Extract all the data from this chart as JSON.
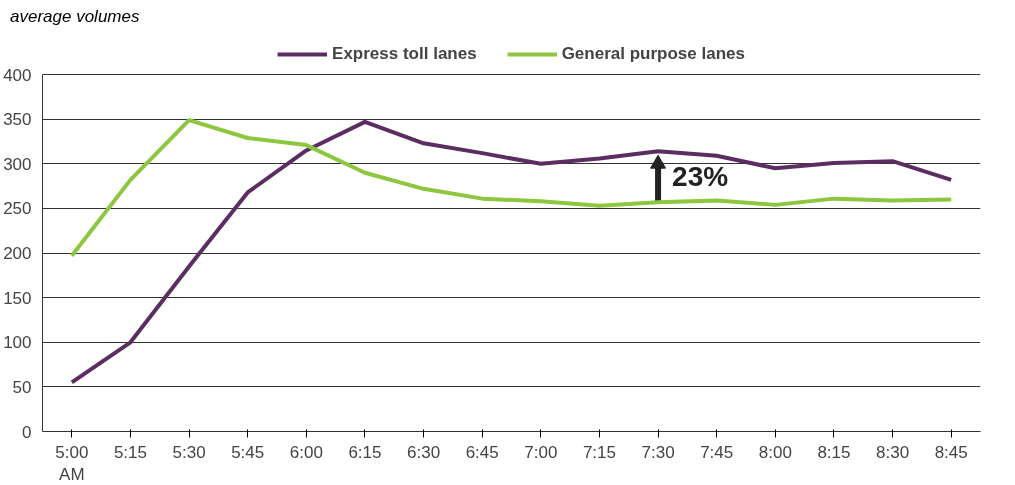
{
  "chart_data": {
    "type": "line",
    "ylabel": "average volumes",
    "categories": [
      "5:00\nAM",
      "5:15",
      "5:30",
      "5:45",
      "6:00",
      "6:15",
      "6:30",
      "6:45",
      "7:00",
      "7:15",
      "7:30",
      "7:45",
      "8:00",
      "8:15",
      "8:30",
      "8:45"
    ],
    "series": [
      {
        "name": "Express toll lanes",
        "color": "#5c2d62",
        "values": [
          55,
          100,
          185,
          268,
          315,
          347,
          323,
          312,
          300,
          306,
          314,
          309,
          295,
          301,
          303,
          282
        ]
      },
      {
        "name": "General purpose lanes",
        "color": "#8dc63f",
        "values": [
          197,
          282,
          349,
          329,
          321,
          290,
          272,
          261,
          258,
          253,
          257,
          259,
          254,
          261,
          259,
          260
        ]
      }
    ],
    "ylim": [
      0,
      400
    ],
    "yticks": [
      0,
      50,
      100,
      150,
      200,
      250,
      300,
      350,
      400
    ],
    "grid": "y",
    "legend": "top",
    "marker": "none",
    "line_style": "solid",
    "annotations": [
      "23%"
    ]
  }
}
